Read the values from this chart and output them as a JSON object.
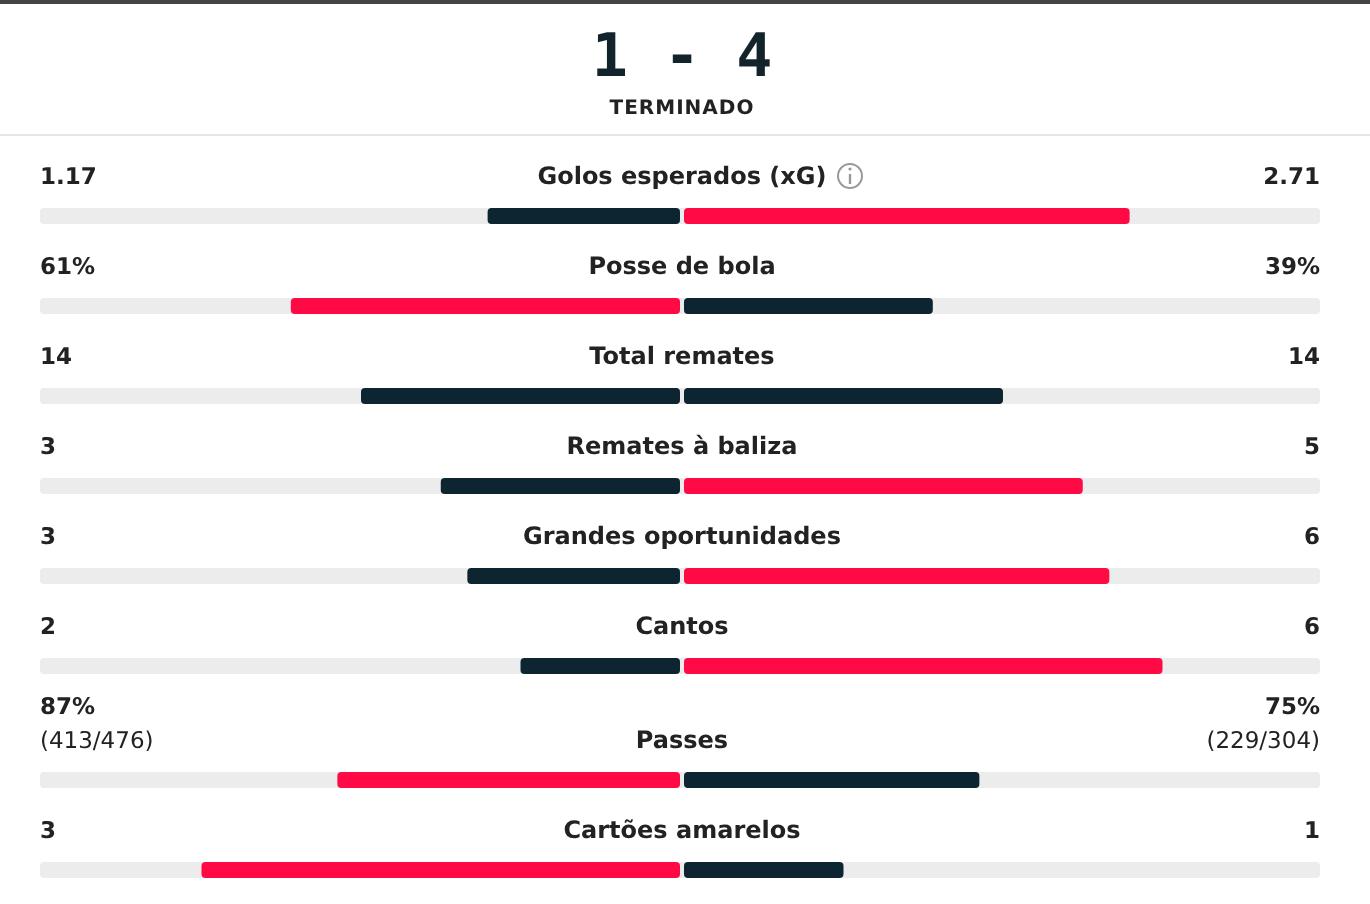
{
  "chart_data": {
    "type": "other",
    "title": "1 - 4",
    "subtitle": "TERMINADO",
    "categories": [
      "Golos esperados (xG)",
      "Posse de bola",
      "Total remates",
      "Remates à baliza",
      "Grandes oportunidades",
      "Cantos",
      "Passes",
      "Cartões amarelos"
    ],
    "series": [
      {
        "values": [
          1.17,
          61,
          14,
          3,
          3,
          2,
          87,
          3
        ],
        "colors": [
          "#0d2530",
          "#ff0a45",
          "#0d2530",
          "#0d2530",
          "#0d2530",
          "#0d2530",
          "#ff0a45",
          "#ff0a45"
        ],
        "value_labels": [
          "1.17",
          "61%",
          "14",
          "3",
          "3",
          "2",
          "87%\n(413/476)",
          "3"
        ]
      },
      {
        "values": [
          2.71,
          39,
          14,
          5,
          6,
          6,
          75,
          1
        ],
        "colors": [
          "#ff0a45",
          "#0d2530",
          "#0d2530",
          "#ff0a45",
          "#ff0a45",
          "#ff0a45",
          "#0d2530",
          "#0d2530"
        ],
        "value_labels": [
          "2.71",
          "39%",
          "14",
          "5",
          "6",
          "6",
          "75%\n(229/304)",
          "1"
        ]
      }
    ]
  }
}
